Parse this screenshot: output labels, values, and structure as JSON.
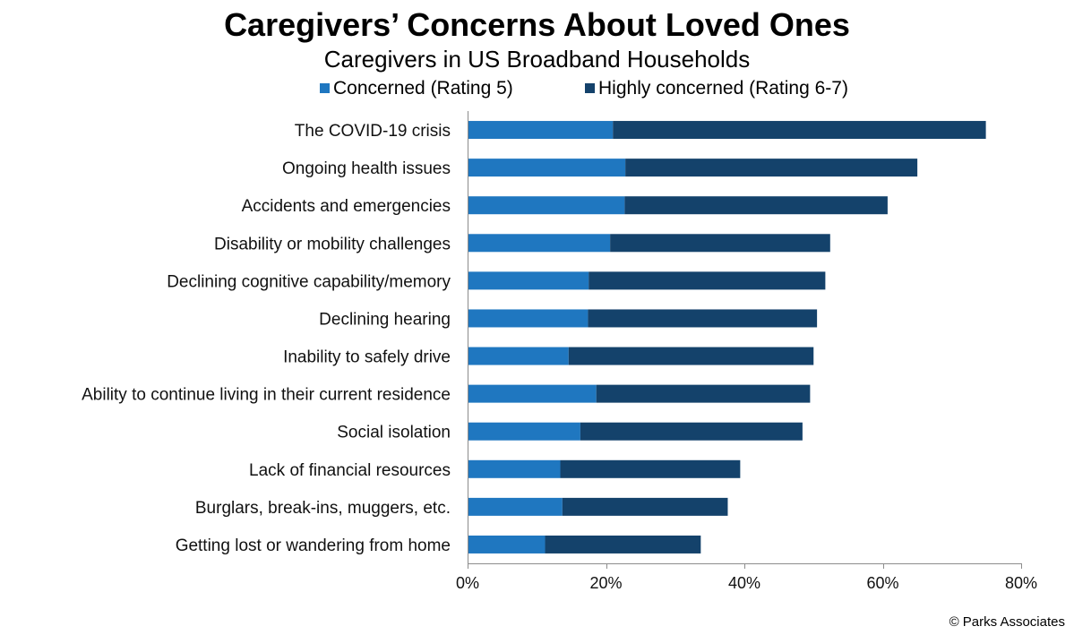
{
  "chart_data": {
    "type": "bar",
    "orientation": "horizontal",
    "stacked": true,
    "title": "Caregivers’ Concerns About Loved Ones",
    "subtitle": "Caregivers in US Broadband Households",
    "categories": [
      "The COVID-19 crisis",
      "Ongoing health issues",
      "Accidents and emergencies",
      "Disability or mobility challenges",
      "Declining cognitive capability/memory",
      "Declining hearing",
      "Inability to safely drive",
      "Ability to continue living in their current residence",
      "Social isolation",
      "Lack of financial resources",
      "Burglars, break-ins, muggers, etc.",
      "Getting lost or wandering from home"
    ],
    "series": [
      {
        "name": "Concerned (Rating 5)",
        "color": "#1f77c0",
        "values": [
          21,
          22.8,
          22.7,
          20.6,
          17.5,
          17.4,
          14.6,
          18.6,
          16.3,
          13.4,
          13.7,
          11.2
        ]
      },
      {
        "name": "Highly concerned (Rating 6-7)",
        "color": "#14426b",
        "values": [
          53.9,
          42.2,
          38,
          31.8,
          34.2,
          33.1,
          35.4,
          30.9,
          32.1,
          26,
          23.9,
          22.5
        ]
      }
    ],
    "x_axis": {
      "ticks": [
        "0%",
        "20%",
        "40%",
        "60%",
        "80%"
      ],
      "range": [
        0,
        80
      ],
      "unit": "%"
    },
    "legend_position": "top",
    "grid": false
  },
  "footer": {
    "copyright": "© Parks Associates"
  }
}
